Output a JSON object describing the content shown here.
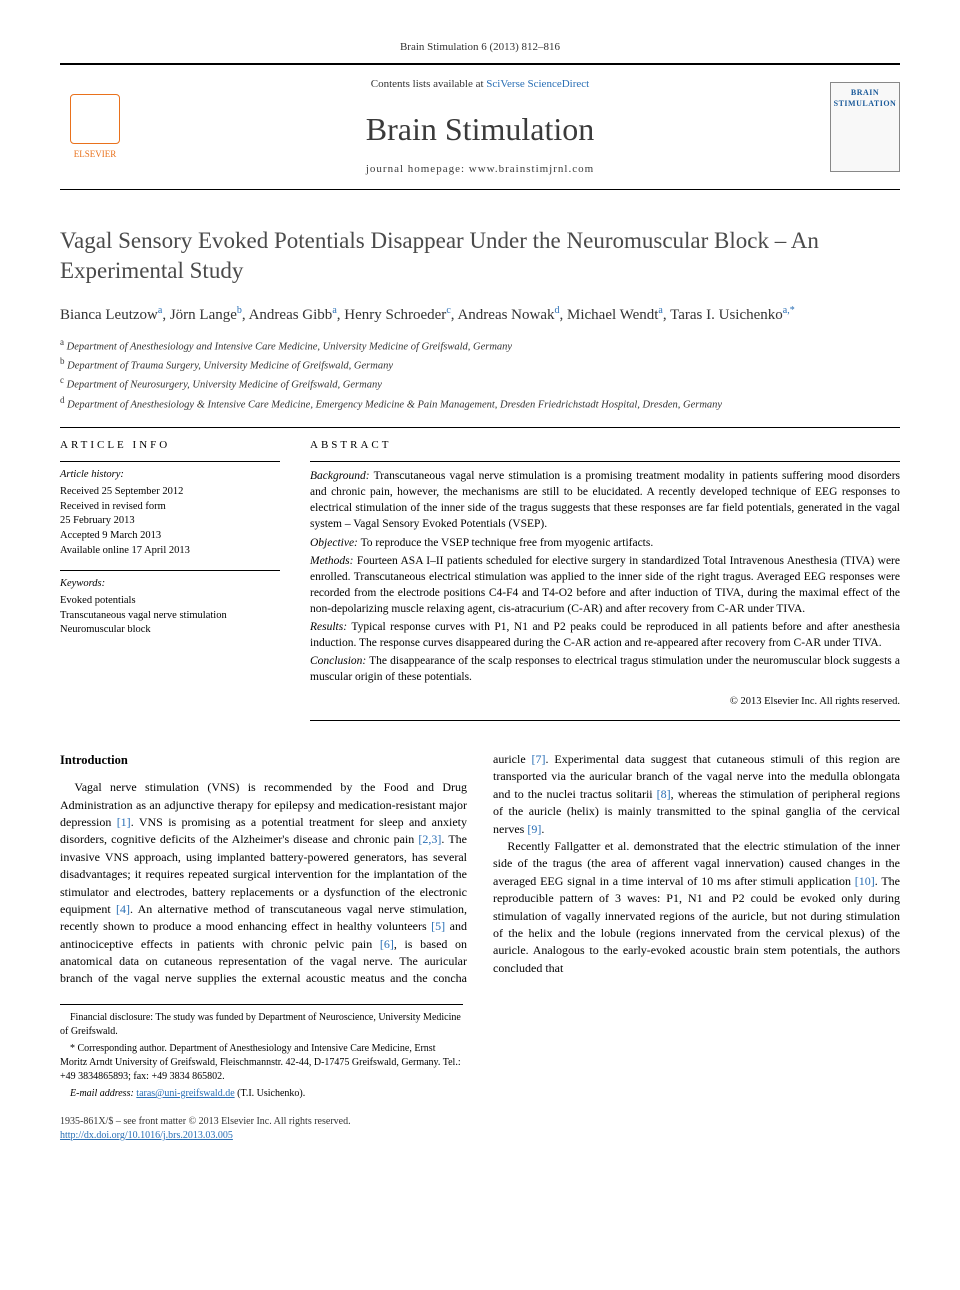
{
  "citation": "Brain Stimulation 6 (2013) 812–816",
  "header": {
    "contents_prefix": "Contents lists available at ",
    "contents_link": "SciVerse ScienceDirect",
    "journal_name": "Brain Stimulation",
    "homepage_prefix": "journal homepage: ",
    "homepage_url": "www.brainstimjrnl.com",
    "elsevier_label": "ELSEVIER",
    "cover_title": "BRAIN STIMULATION"
  },
  "title": "Vagal Sensory Evoked Potentials Disappear Under the Neuromuscular Block – An Experimental Study",
  "authors": [
    {
      "name": "Bianca Leutzow",
      "aff": "a"
    },
    {
      "name": "Jörn Lange",
      "aff": "b"
    },
    {
      "name": "Andreas Gibb",
      "aff": "a"
    },
    {
      "name": "Henry Schroeder",
      "aff": "c"
    },
    {
      "name": "Andreas Nowak",
      "aff": "d"
    },
    {
      "name": "Michael Wendt",
      "aff": "a"
    },
    {
      "name": "Taras I. Usichenko",
      "aff": "a,*"
    }
  ],
  "affiliations": {
    "a": "Department of Anesthesiology and Intensive Care Medicine, University Medicine of Greifswald, Germany",
    "b": "Department of Trauma Surgery, University Medicine of Greifswald, Germany",
    "c": "Department of Neurosurgery, University Medicine of Greifswald, Germany",
    "d": "Department of Anesthesiology & Intensive Care Medicine, Emergency Medicine & Pain Management, Dresden Friedrichstadt Hospital, Dresden, Germany"
  },
  "article_info": {
    "heading": "ARTICLE INFO",
    "history_label": "Article history:",
    "history": [
      "Received 25 September 2012",
      "Received in revised form",
      "25 February 2013",
      "Accepted 9 March 2013",
      "Available online 17 April 2013"
    ],
    "keywords_label": "Keywords:",
    "keywords": [
      "Evoked potentials",
      "Transcutaneous vagal nerve stimulation",
      "Neuromuscular block"
    ]
  },
  "abstract": {
    "heading": "ABSTRACT",
    "sections": [
      {
        "label": "Background:",
        "text": "Transcutaneous vagal nerve stimulation is a promising treatment modality in patients suffering mood disorders and chronic pain, however, the mechanisms are still to be elucidated. A recently developed technique of EEG responses to electrical stimulation of the inner side of the tragus suggests that these responses are far field potentials, generated in the vagal system – Vagal Sensory Evoked Potentials (VSEP)."
      },
      {
        "label": "Objective:",
        "text": "To reproduce the VSEP technique free from myogenic artifacts."
      },
      {
        "label": "Methods:",
        "text": "Fourteen ASA I–II patients scheduled for elective surgery in standardized Total Intravenous Anesthesia (TIVA) were enrolled. Transcutaneous electrical stimulation was applied to the inner side of the right tragus. Averaged EEG responses were recorded from the electrode positions C4-F4 and T4-O2 before and after induction of TIVA, during the maximal effect of the non-depolarizing muscle relaxing agent, cis-atracurium (C-AR) and after recovery from C-AR under TIVA."
      },
      {
        "label": "Results:",
        "text": "Typical response curves with P1, N1 and P2 peaks could be reproduced in all patients before and after anesthesia induction. The response curves disappeared during the C-AR action and re-appeared after recovery from C-AR under TIVA."
      },
      {
        "label": "Conclusion:",
        "text": "The disappearance of the scalp responses to electrical tragus stimulation under the neuromuscular block suggests a muscular origin of these potentials."
      }
    ],
    "copyright": "© 2013 Elsevier Inc. All rights reserved."
  },
  "body": {
    "intro_heading": "Introduction",
    "col1_p1_a": "Vagal nerve stimulation (VNS) is recommended by the Food and Drug Administration as an adjunctive therapy for epilepsy and medication-resistant major depression ",
    "col1_p1_ref1": "[1]",
    "col1_p1_b": ". VNS is promising as a potential treatment for sleep and anxiety disorders, cognitive deficits of the Alzheimer's disease and chronic pain ",
    "col1_p1_ref2": "[2,3]",
    "col1_p1_c": ". The invasive VNS approach, using implanted battery-powered generators, has several disadvantages; it requires repeated surgical intervention for the implantation of the stimulator and electrodes, battery replacements or a dysfunction of the electronic equipment ",
    "col1_p1_ref3": "[4]",
    "col1_p1_d": ". An alternative method of transcutaneous vagal nerve",
    "col2_p1_a": "stimulation, recently shown to produce a mood enhancing effect in healthy volunteers ",
    "col2_p1_ref1": "[5]",
    "col2_p1_b": " and antinociceptive effects in patients with chronic pelvic pain ",
    "col2_p1_ref2": "[6]",
    "col2_p1_c": ", is based on anatomical data on cutaneous representation of the vagal nerve. The auricular branch of the vagal nerve supplies the external acoustic meatus and the concha auricle ",
    "col2_p1_ref3": "[7]",
    "col2_p1_d": ". Experimental data suggest that cutaneous stimuli of this region are transported via the auricular branch of the vagal nerve into the medulla oblongata and to the nuclei tractus solitarii ",
    "col2_p1_ref4": "[8]",
    "col2_p1_e": ", whereas the stimulation of peripheral regions of the auricle (helix) is mainly transmitted to the spinal ganglia of the cervical nerves ",
    "col2_p1_ref5": "[9]",
    "col2_p1_f": ".",
    "col2_p2_a": "Recently Fallgatter et al. demonstrated that the electric stimulation of the inner side of the tragus (the area of afferent vagal innervation) caused changes in the averaged EEG signal in a time interval of 10 ms after stimuli application ",
    "col2_p2_ref1": "[10]",
    "col2_p2_b": ". The reproducible pattern of 3 waves: P1, N1 and P2 could be evoked only during stimulation of vagally innervated regions of the auricle, but not during stimulation of the helix and the lobule (regions innervated from the cervical plexus) of the auricle. Analogous to the early-evoked acoustic brain stem potentials, the authors concluded that"
  },
  "footnotes": {
    "financial": "Financial disclosure: The study was funded by Department of Neuroscience, University Medicine of Greifswald.",
    "corresponding": "* Corresponding author. Department of Anesthesiology and Intensive Care Medicine, Ernst Moritz Arndt University of Greifswald, Fleischmannstr. 42-44, D-17475 Greifswald, Germany. Tel.: +49 3834865893; fax: +49 3834 865802.",
    "email_label": "E-mail address: ",
    "email": "taras@uni-greifswald.de",
    "email_suffix": " (T.I. Usichenko)."
  },
  "bottom": {
    "line1": "1935-861X/$ – see front matter © 2013 Elsevier Inc. All rights reserved.",
    "doi": "http://dx.doi.org/10.1016/j.brs.2013.03.005"
  },
  "colors": {
    "link": "#2a6fb5",
    "elsevier": "#e9711c"
  }
}
